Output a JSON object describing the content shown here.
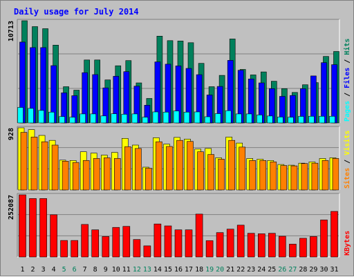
{
  "chart_data": {
    "type": "bar",
    "title": "Daily usage for July 2014",
    "categories": [
      "1",
      "2",
      "3",
      "4",
      "5",
      "6",
      "7",
      "8",
      "9",
      "10",
      "11",
      "12",
      "13",
      "14",
      "15",
      "16",
      "17",
      "18",
      "19",
      "20",
      "21",
      "22",
      "23",
      "24",
      "25",
      "26",
      "27",
      "28",
      "29",
      "30",
      "31"
    ],
    "weekend_days": [
      "5",
      "6",
      "12",
      "13",
      "19",
      "20",
      "26",
      "27"
    ],
    "panels": [
      {
        "name": "usage",
        "ymax": 10713,
        "ymax_label": "10713",
        "labels": [
          "Pages",
          "Files",
          "Hits"
        ],
        "series": [
          {
            "name": "Hits",
            "color": "#00805c",
            "values": [
              10713,
              10095,
              9881,
              8158,
              3798,
              3435,
              6602,
              6602,
              4508,
              5990,
              6534,
              4200,
              2570,
              9100,
              8630,
              8590,
              8408,
              6250,
              3800,
              4985,
              8805,
              5610,
              5040,
              5350,
              4370,
              3600,
              3200,
              4000,
              4230,
              6970,
              7490
            ]
          },
          {
            "name": "Files",
            "color": "#0000ff",
            "values": [
              8475,
              7895,
              7895,
              6010,
              3155,
              2860,
              5270,
              5070,
              3680,
              4890,
              5380,
              3860,
              1860,
              6400,
              6160,
              5980,
              5720,
              5060,
              2930,
              3830,
              6560,
              5520,
              4610,
              4200,
              3600,
              2790,
              2880,
              3590,
              4930,
              6320,
              6110
            ]
          },
          {
            "name": "Pages",
            "color": "#00ffff",
            "values": [
              1630,
              1530,
              1320,
              1140,
              670,
              600,
              950,
              950,
              740,
              960,
              910,
              950,
              600,
              1160,
              1140,
              1250,
              1140,
              1160,
              650,
              980,
              1290,
              950,
              950,
              840,
              730,
              620,
              600,
              690,
              700,
              700,
              700
            ]
          }
        ]
      },
      {
        "name": "visitors",
        "ymax": 928,
        "ymax_label": "928",
        "labels": [
          "Sites",
          "Visits"
        ],
        "series": [
          {
            "name": "Visits",
            "color": "#ffff00",
            "values": [
              928,
              900,
              815,
              740,
              445,
              440,
              570,
              550,
              520,
              560,
              770,
              670,
              340,
              780,
              685,
              785,
              760,
              610,
              620,
              480,
              790,
              700,
              470,
              460,
              440,
              380,
              370,
              400,
              420,
              470,
              480
            ]
          },
          {
            "name": "Sites",
            "color": "#ff8000",
            "values": [
              860,
              790,
              720,
              670,
              430,
              410,
              440,
              470,
              480,
              470,
              645,
              620,
              325,
              720,
              650,
              740,
              725,
              570,
              530,
              460,
              740,
              640,
              440,
              440,
              420,
              365,
              360,
              395,
              400,
              440,
              470
            ]
          }
        ]
      },
      {
        "name": "kbytes",
        "ymax": 252087,
        "ymax_label": "252087",
        "labels": [
          "KBytes"
        ],
        "series": [
          {
            "name": "KBytes",
            "color": "#ff0000",
            "values": [
              252087,
              237000,
              237000,
              171000,
              67000,
              67000,
              132000,
              110000,
              83000,
              120000,
              124000,
              71000,
              45000,
              134000,
              126000,
              110000,
              110000,
              174000,
              66000,
              99000,
              113000,
              129000,
              96000,
              94000,
              96000,
              84000,
              52000,
              76000,
              83000,
              150000,
              185000
            ]
          }
        ]
      }
    ]
  }
}
